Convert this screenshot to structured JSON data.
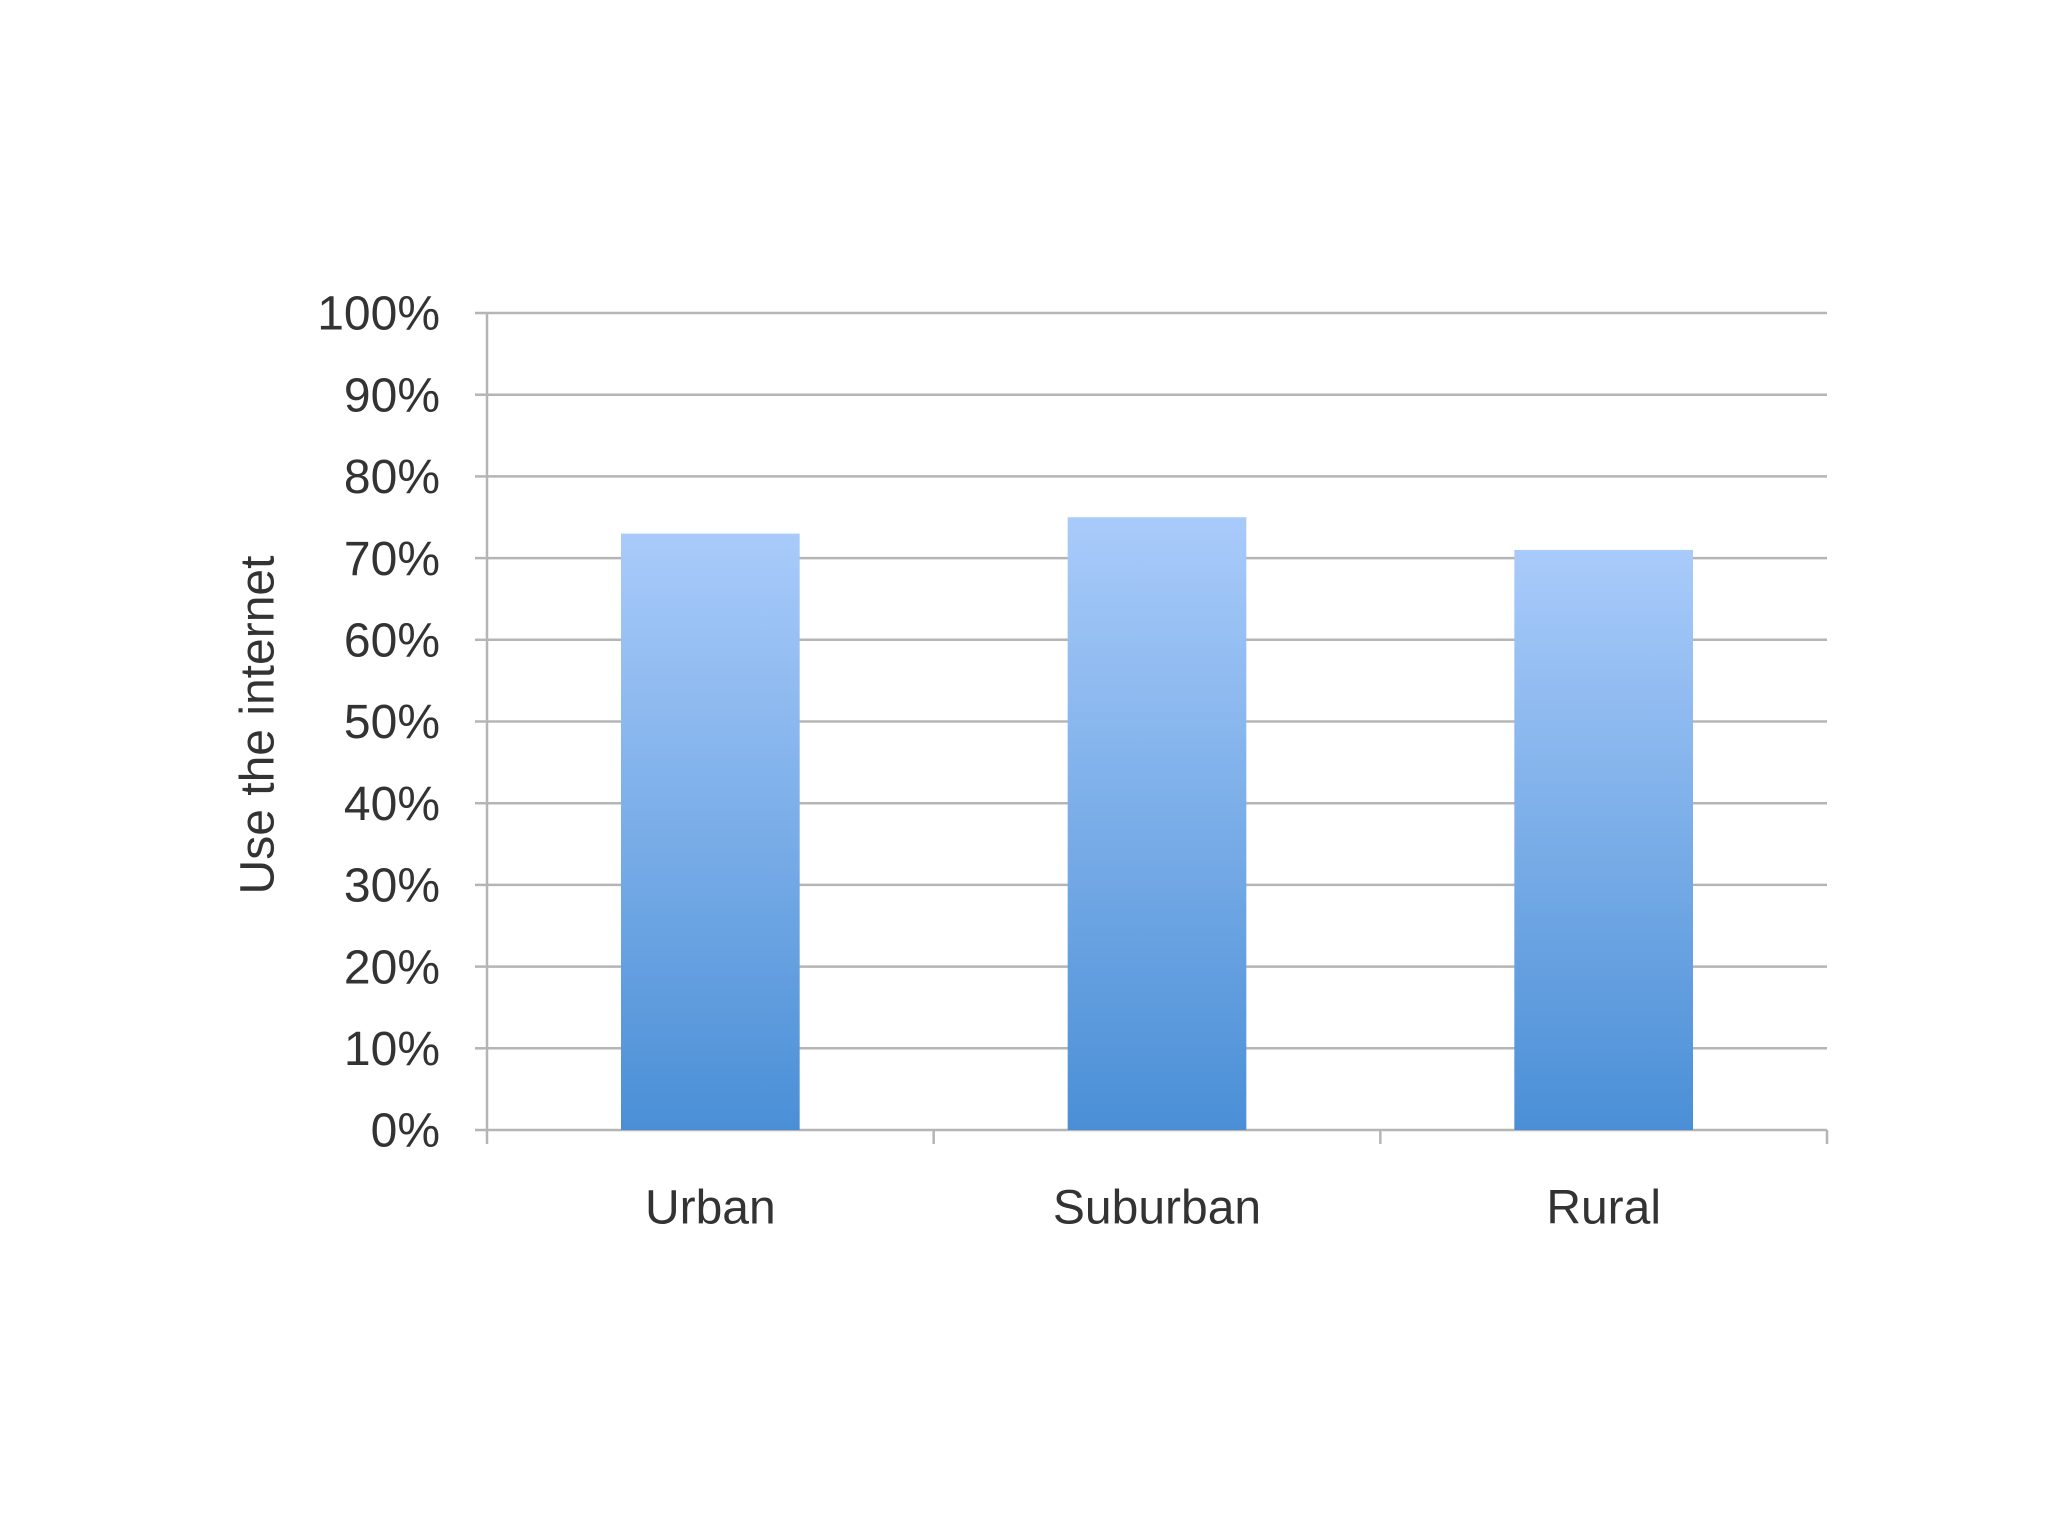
{
  "chart_data": {
    "type": "bar",
    "y_label": "Use the internet",
    "categories": [
      "Urban",
      "Suburban",
      "Rural"
    ],
    "values": [
      73,
      75,
      71
    ],
    "color": "#4a8fd6",
    "color_top": "#a9cbfa",
    "ylim": [
      0,
      100
    ],
    "yticks": [
      {
        "value": 0,
        "label": "0%"
      },
      {
        "value": 10,
        "label": "10%"
      },
      {
        "value": 20,
        "label": "20%"
      },
      {
        "value": 30,
        "label": "30%"
      },
      {
        "value": 40,
        "label": "40%"
      },
      {
        "value": 50,
        "label": "50%"
      },
      {
        "value": 60,
        "label": "60%"
      },
      {
        "value": 70,
        "label": "70%"
      },
      {
        "value": 80,
        "label": "80%"
      },
      {
        "value": 90,
        "label": "90%"
      },
      {
        "value": 100,
        "label": "100%"
      }
    ],
    "grid": true
  }
}
